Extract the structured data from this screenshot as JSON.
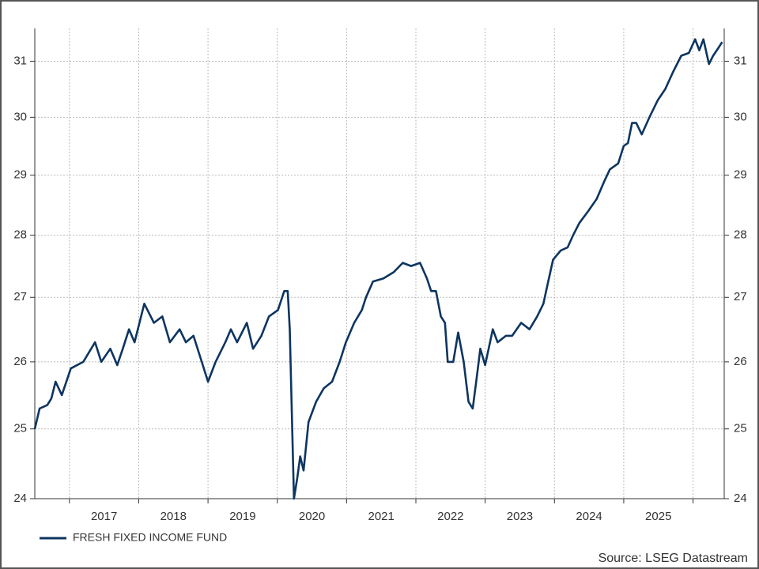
{
  "chart_data": {
    "type": "line",
    "source": "Source: LSEG Datastream",
    "yscale": "log",
    "grid": true,
    "legend": "bottom-left",
    "xlim": [
      2016.5,
      2026.45
    ],
    "ylim": [
      24,
      31.6
    ],
    "xticks": [
      {
        "value": 2017,
        "label": "2017"
      },
      {
        "value": 2018,
        "label": "2018"
      },
      {
        "value": 2019,
        "label": "2019"
      },
      {
        "value": 2020,
        "label": "2020"
      },
      {
        "value": 2021,
        "label": "2021"
      },
      {
        "value": 2022,
        "label": "2022"
      },
      {
        "value": 2023,
        "label": "2023"
      },
      {
        "value": 2024,
        "label": "2024"
      },
      {
        "value": 2025,
        "label": "2025"
      }
    ],
    "yticks": [
      24,
      25,
      26,
      27,
      28,
      29,
      30,
      31
    ],
    "x": [
      2016.5,
      2016.57,
      2016.68,
      2016.74,
      2016.8,
      2016.89,
      2017.02,
      2017.2,
      2017.37,
      2017.46,
      2017.59,
      2017.69,
      2017.77,
      2017.86,
      2017.94,
      2018.08,
      2018.22,
      2018.34,
      2018.45,
      2018.59,
      2018.68,
      2018.79,
      2018.91,
      2019.0,
      2019.11,
      2019.25,
      2019.33,
      2019.42,
      2019.56,
      2019.65,
      2019.77,
      2019.88,
      2020.01,
      2020.1,
      2020.15,
      2020.18,
      2020.24,
      2020.29,
      2020.33,
      2020.38,
      2020.45,
      2020.56,
      2020.67,
      2020.79,
      2020.9,
      2020.99,
      2021.11,
      2021.22,
      2021.28,
      2021.38,
      2021.53,
      2021.68,
      2021.81,
      2021.93,
      2022.06,
      2022.16,
      2022.22,
      2022.29,
      2022.36,
      2022.42,
      2022.46,
      2022.54,
      2022.61,
      2022.69,
      2022.76,
      2022.82,
      2022.87,
      2022.93,
      2023.0,
      2023.07,
      2023.11,
      2023.18,
      2023.3,
      2023.39,
      2023.52,
      2023.64,
      2023.75,
      2023.84,
      2023.9,
      2023.98,
      2024.09,
      2024.19,
      2024.27,
      2024.36,
      2024.49,
      2024.61,
      2024.72,
      2024.8,
      2024.92,
      2025.0,
      2025.06,
      2025.12,
      2025.18,
      2025.26,
      2025.37,
      2025.49,
      2025.6,
      2025.71,
      2025.83,
      2025.94,
      2026.03,
      2026.09,
      2026.15,
      2026.23,
      2026.29,
      2026.37,
      2026.42
    ],
    "series": [
      {
        "name": "FRESH FIXED INCOME FUND",
        "color": "#0d3560",
        "values": [
          25.0,
          25.3,
          25.35,
          25.45,
          25.7,
          25.5,
          25.9,
          26.0,
          26.3,
          26.0,
          26.2,
          25.95,
          26.2,
          26.5,
          26.3,
          26.9,
          26.6,
          26.7,
          26.3,
          26.5,
          26.3,
          26.4,
          26.0,
          25.7,
          26.0,
          26.3,
          26.5,
          26.3,
          26.6,
          26.2,
          26.4,
          26.7,
          26.8,
          27.1,
          27.1,
          26.5,
          24.0,
          24.3,
          24.6,
          24.4,
          25.1,
          25.4,
          25.6,
          25.7,
          26.0,
          26.3,
          26.6,
          26.8,
          27.0,
          27.25,
          27.3,
          27.4,
          27.55,
          27.5,
          27.55,
          27.3,
          27.1,
          27.1,
          26.7,
          26.6,
          26.0,
          26.0,
          26.45,
          26.0,
          25.4,
          25.3,
          25.7,
          26.2,
          25.95,
          26.3,
          26.5,
          26.3,
          26.4,
          26.4,
          26.6,
          26.5,
          26.7,
          26.9,
          27.2,
          27.6,
          27.75,
          27.8,
          28.0,
          28.2,
          28.4,
          28.6,
          28.9,
          29.1,
          29.2,
          29.5,
          29.55,
          29.9,
          29.9,
          29.7,
          30.0,
          30.3,
          30.5,
          30.8,
          31.1,
          31.15,
          31.4,
          31.2,
          31.4,
          30.95,
          31.1,
          31.25,
          31.35
        ]
      }
    ]
  }
}
